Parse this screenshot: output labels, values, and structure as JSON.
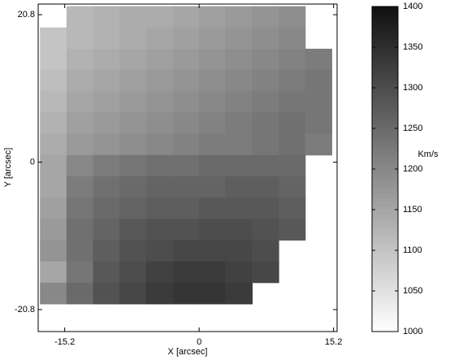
{
  "chart_data": {
    "type": "heatmap",
    "xlabel": "X [arcsec]",
    "ylabel": "Y [arcsec]",
    "colorbar_label": "Km/s",
    "xlim": [
      -18.2,
      15.6
    ],
    "ylim": [
      -23.9,
      22.3
    ],
    "xticks": [
      -15.2,
      0,
      15.2
    ],
    "yticks": [
      -20.8,
      0,
      20.8
    ],
    "clim": [
      1000,
      1400
    ],
    "cticks": [
      1000,
      1050,
      1100,
      1150,
      1200,
      1250,
      1300,
      1350,
      1400
    ],
    "x": [
      -16.5,
      -13.5,
      -10.5,
      -7.5,
      -4.5,
      -1.5,
      1.5,
      4.5,
      7.5,
      10.5,
      13.5
    ],
    "y": [
      20.5,
      17.5,
      14.5,
      11.5,
      8.5,
      5.5,
      2.5,
      -0.5,
      -3.5,
      -6.5,
      -9.5,
      -12.5,
      -15.5,
      -18.5
    ],
    "z": [
      [
        null,
        1120,
        1130,
        1140,
        1140,
        1150,
        1160,
        1170,
        1180,
        1190,
        null
      ],
      [
        1100,
        1120,
        1130,
        1140,
        1150,
        1160,
        1170,
        1180,
        1190,
        1200,
        null
      ],
      [
        1100,
        1130,
        1140,
        1150,
        1160,
        1170,
        1180,
        1190,
        1200,
        1210,
        1220
      ],
      [
        1110,
        1140,
        1150,
        1160,
        1170,
        1180,
        1190,
        1200,
        1210,
        1220,
        1230
      ],
      [
        1120,
        1150,
        1160,
        1170,
        1180,
        1190,
        1200,
        1210,
        1220,
        1230,
        1230
      ],
      [
        1130,
        1160,
        1170,
        1180,
        1190,
        1200,
        1210,
        1220,
        1230,
        1240,
        1230
      ],
      [
        1140,
        1170,
        1180,
        1190,
        1200,
        1210,
        1220,
        1220,
        1230,
        1240,
        1220
      ],
      [
        1150,
        1200,
        1220,
        1230,
        1240,
        1240,
        1250,
        1250,
        1250,
        1250,
        null
      ],
      [
        1150,
        1220,
        1240,
        1250,
        1260,
        1260,
        1260,
        1270,
        1270,
        1260,
        null
      ],
      [
        1160,
        1230,
        1250,
        1260,
        1270,
        1270,
        1280,
        1280,
        1280,
        1270,
        null
      ],
      [
        1170,
        1240,
        1260,
        1280,
        1290,
        1290,
        1300,
        1300,
        1290,
        1280,
        null
      ],
      [
        1180,
        1240,
        1270,
        1290,
        1300,
        1310,
        1310,
        1310,
        1300,
        null,
        null
      ],
      [
        1150,
        1230,
        1280,
        1300,
        1320,
        1330,
        1330,
        1320,
        1310,
        null,
        null
      ],
      [
        1200,
        1250,
        1290,
        1310,
        1330,
        1340,
        1340,
        1330,
        null,
        null,
        null
      ]
    ]
  }
}
